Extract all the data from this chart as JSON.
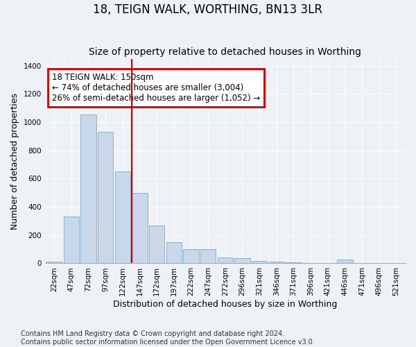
{
  "title": "18, TEIGN WALK, WORTHING, BN13 3LR",
  "subtitle": "Size of property relative to detached houses in Worthing",
  "xlabel": "Distribution of detached houses by size in Worthing",
  "ylabel": "Number of detached properties",
  "footnote1": "Contains HM Land Registry data © Crown copyright and database right 2024.",
  "footnote2": "Contains public sector information licensed under the Open Government Licence v3.0.",
  "annotation_line1": "18 TEIGN WALK: 150sqm",
  "annotation_line2": "← 74% of detached houses are smaller (3,004)",
  "annotation_line3": "26% of semi-detached houses are larger (1,052) →",
  "bar_color": "#c8d8ea",
  "bar_edge_color": "#7aaac8",
  "highlight_line_color": "#cc0000",
  "annotation_box_edge_color": "#cc0000",
  "background_color": "#eef2f7",
  "grid_color": "#ffffff",
  "categories": [
    "22sqm",
    "47sqm",
    "72sqm",
    "97sqm",
    "122sqm",
    "147sqm",
    "172sqm",
    "197sqm",
    "222sqm",
    "247sqm",
    "272sqm",
    "296sqm",
    "321sqm",
    "346sqm",
    "371sqm",
    "396sqm",
    "421sqm",
    "446sqm",
    "471sqm",
    "496sqm",
    "521sqm"
  ],
  "values": [
    10,
    330,
    1055,
    930,
    650,
    500,
    270,
    150,
    100,
    100,
    40,
    35,
    18,
    10,
    8,
    0,
    0,
    25,
    0,
    0,
    0
  ],
  "ylim": [
    0,
    1450
  ],
  "yticks": [
    0,
    200,
    400,
    600,
    800,
    1000,
    1200,
    1400
  ],
  "highlight_bar_index": 5,
  "title_fontsize": 12,
  "subtitle_fontsize": 10,
  "axis_label_fontsize": 9,
  "tick_fontsize": 7.5,
  "annotation_fontsize": 8.5,
  "footnote_fontsize": 7
}
